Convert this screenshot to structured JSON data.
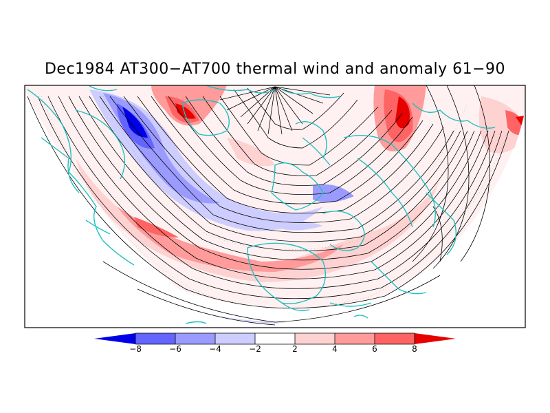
{
  "title": "Dec1984 AT300−AT700 thermal wind and anomaly 61−90",
  "colorbar": {
    "ticks": [
      "−8",
      "−6",
      "−4",
      "−2",
      "2",
      "4",
      "6",
      "8"
    ],
    "colors": [
      "#0000e6",
      "#6464ff",
      "#9b9bff",
      "#cdcdff",
      "#ffffff",
      "#ffd2d2",
      "#ff9b9b",
      "#ff6464",
      "#e60000"
    ]
  },
  "colors": {
    "coastline": "#20c0c0",
    "streamline": "#000000",
    "frame": "#000000"
  }
}
